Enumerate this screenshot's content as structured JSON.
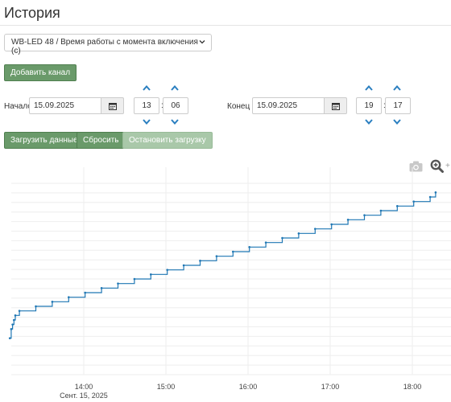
{
  "page": {
    "title": "История"
  },
  "channel_select": {
    "value": "WB-LED 48 / Время работы с момента включения (с)"
  },
  "buttons": {
    "add_channel": "Добавить канал",
    "load": "Загрузить данные",
    "reset": "Сбросить",
    "stop": "Остановить загрузку"
  },
  "start": {
    "label": "Начало",
    "date": "15.09.2025",
    "hour": "13",
    "minute": "06"
  },
  "end": {
    "label": "Конец",
    "date": "15.09.2025",
    "hour": "19",
    "minute": "17"
  },
  "toolbar": {
    "icons": [
      "camera-icon",
      "zoom-icon"
    ]
  },
  "colors": {
    "button": "#6a9a6a",
    "button_disabled": "#a9c8a9",
    "line": "#1f77b4",
    "chevron": "#2a7fc0"
  },
  "chart_data": {
    "type": "line",
    "title": "",
    "xlabel": "",
    "ylabel": "",
    "x_ticks": [
      "14:00",
      "15:00",
      "16:00",
      "17:00",
      "18:00"
    ],
    "x_tick_sublabel": "Сент. 15, 2025",
    "x": [
      "13:06",
      "13:07",
      "13:08",
      "13:09",
      "13:10",
      "13:13",
      "13:25",
      "13:37",
      "13:49",
      "14:01",
      "14:13",
      "14:25",
      "14:37",
      "14:49",
      "15:01",
      "15:13",
      "15:25",
      "15:37",
      "15:49",
      "16:01",
      "16:13",
      "16:25",
      "16:37",
      "16:49",
      "17:01",
      "17:13",
      "17:25",
      "17:37",
      "17:49",
      "18:01",
      "18:13",
      "18:17"
    ],
    "y": [
      8,
      10,
      11,
      12,
      13,
      14,
      15,
      16,
      17,
      18,
      19,
      20,
      21,
      22,
      23,
      24,
      25,
      26,
      27,
      28,
      29,
      30,
      31,
      32,
      33,
      34,
      35,
      36,
      37,
      38,
      39,
      40
    ],
    "step": true,
    "grid": true
  }
}
